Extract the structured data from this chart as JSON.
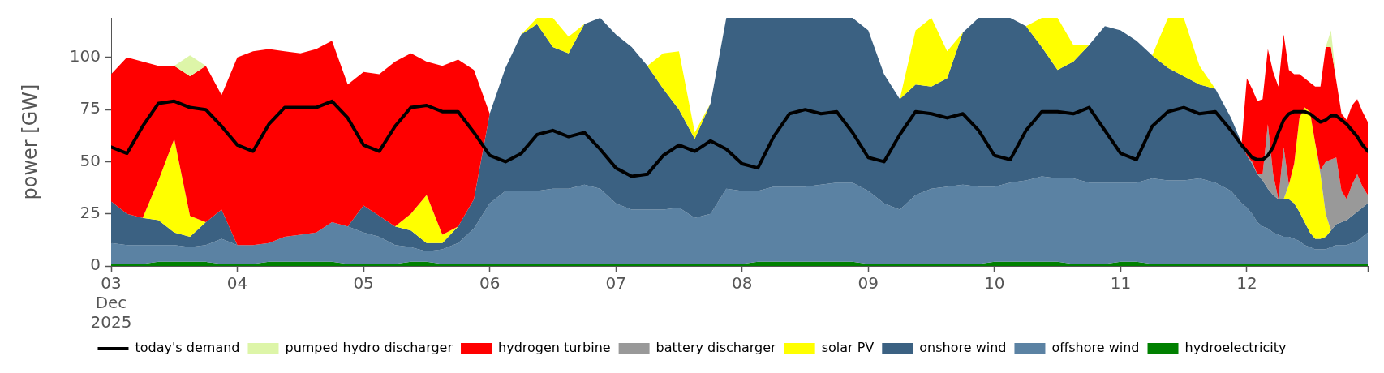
{
  "chart_data": {
    "type": "area",
    "stacked": true,
    "ylabel": "power [GW]",
    "legend": "bottom",
    "x": [
      "2025-12-03T00:00",
      "2025-12-03T03:00",
      "2025-12-03T06:00",
      "2025-12-03T09:00",
      "2025-12-03T12:00",
      "2025-12-03T15:00",
      "2025-12-03T18:00",
      "2025-12-03T21:00",
      "2025-12-04T00:00",
      "2025-12-04T03:00",
      "2025-12-04T06:00",
      "2025-12-04T09:00",
      "2025-12-04T12:00",
      "2025-12-04T15:00",
      "2025-12-04T18:00",
      "2025-12-04T21:00",
      "2025-12-05T00:00",
      "2025-12-05T03:00",
      "2025-12-05T06:00",
      "2025-12-05T09:00",
      "2025-12-05T12:00",
      "2025-12-05T15:00",
      "2025-12-05T18:00",
      "2025-12-05T21:00",
      "2025-12-06T00:00",
      "2025-12-06T03:00",
      "2025-12-06T06:00",
      "2025-12-06T09:00",
      "2025-12-06T12:00",
      "2025-12-06T15:00",
      "2025-12-06T18:00",
      "2025-12-06T21:00",
      "2025-12-07T00:00",
      "2025-12-07T03:00",
      "2025-12-07T06:00",
      "2025-12-07T09:00",
      "2025-12-07T12:00",
      "2025-12-07T15:00",
      "2025-12-07T18:00",
      "2025-12-07T21:00",
      "2025-12-08T00:00",
      "2025-12-08T03:00",
      "2025-12-08T06:00",
      "2025-12-08T09:00",
      "2025-12-08T12:00",
      "2025-12-08T15:00",
      "2025-12-08T18:00",
      "2025-12-08T21:00",
      "2025-12-09T00:00",
      "2025-12-09T03:00",
      "2025-12-09T06:00",
      "2025-12-09T09:00",
      "2025-12-09T12:00",
      "2025-12-09T15:00",
      "2025-12-09T18:00",
      "2025-12-09T21:00",
      "2025-12-10T00:00",
      "2025-12-10T03:00",
      "2025-12-10T06:00",
      "2025-12-10T09:00",
      "2025-12-10T12:00",
      "2025-12-10T15:00",
      "2025-12-10T18:00",
      "2025-12-10T21:00",
      "2025-12-11T00:00",
      "2025-12-11T03:00",
      "2025-12-11T06:00",
      "2025-12-11T09:00",
      "2025-12-11T12:00",
      "2025-12-11T15:00",
      "2025-12-11T18:00",
      "2025-12-11T21:00",
      "2025-12-11T23:00",
      "2025-12-12T00:00",
      "2025-12-12T01:00",
      "2025-12-12T02:00",
      "2025-12-12T03:00",
      "2025-12-12T04:00",
      "2025-12-12T05:00",
      "2025-12-12T06:00",
      "2025-12-12T07:00",
      "2025-12-12T08:00",
      "2025-12-12T09:00",
      "2025-12-12T10:00",
      "2025-12-12T11:00",
      "2025-12-12T12:00",
      "2025-12-12T13:00",
      "2025-12-12T14:00",
      "2025-12-12T15:00",
      "2025-12-12T16:00",
      "2025-12-12T17:00",
      "2025-12-12T18:00",
      "2025-12-12T19:00",
      "2025-12-12T20:00",
      "2025-12-12T21:00",
      "2025-12-12T22:00",
      "2025-12-12T23:00"
    ],
    "xlim": [
      "2025-12-03",
      "2025-12-12T23:00"
    ],
    "xticks": [
      {
        "value": "2025-12-03",
        "label": "03\nDec\n2025"
      },
      {
        "value": "2025-12-04",
        "label": "04"
      },
      {
        "value": "2025-12-05",
        "label": "05"
      },
      {
        "value": "2025-12-06",
        "label": "06"
      },
      {
        "value": "2025-12-07",
        "label": "07"
      },
      {
        "value": "2025-12-08",
        "label": "08"
      },
      {
        "value": "2025-12-09",
        "label": "09"
      },
      {
        "value": "2025-12-10",
        "label": "10"
      },
      {
        "value": "2025-12-11",
        "label": "11"
      },
      {
        "value": "2025-12-12",
        "label": "12"
      },
      {
        "value": "2025-12-12T23:00",
        "label": null
      }
    ],
    "ylim": [
      0,
      119
    ],
    "yticks": [
      0,
      25,
      50,
      75,
      100
    ],
    "series": [
      {
        "name": "hydroelectricity",
        "color": "#008000",
        "values": [
          1,
          1,
          1,
          2,
          2,
          2,
          2,
          1,
          1,
          1,
          2,
          2,
          2,
          2,
          2,
          1,
          1,
          1,
          1,
          2,
          2,
          1,
          1,
          1,
          1,
          1,
          1,
          1,
          1,
          1,
          1,
          1,
          1,
          1,
          1,
          1,
          1,
          1,
          1,
          1,
          1,
          2,
          2,
          2,
          2,
          2,
          2,
          2,
          1,
          1,
          1,
          1,
          1,
          1,
          1,
          1,
          2,
          2,
          2,
          2,
          2,
          1,
          1,
          1,
          2,
          2,
          1,
          1,
          1,
          1,
          1,
          1,
          1,
          1,
          1,
          1,
          1,
          1,
          1,
          1,
          1,
          1,
          1,
          1,
          1,
          1,
          1,
          1,
          1,
          1,
          1,
          1,
          1,
          1,
          1,
          1,
          1
        ]
      },
      {
        "name": "offshore wind",
        "color": "#5b82a3",
        "values": [
          10,
          9,
          9,
          8,
          8,
          7,
          8,
          12,
          9,
          9,
          9,
          12,
          13,
          14,
          19,
          18,
          15,
          13,
          9,
          7,
          5,
          7,
          10,
          17,
          29,
          35,
          35,
          35,
          36,
          36,
          38,
          36,
          29,
          26,
          26,
          26,
          27,
          22,
          24,
          36,
          35,
          34,
          36,
          36,
          36,
          37,
          38,
          38,
          35,
          29,
          26,
          33,
          36,
          37,
          38,
          37,
          36,
          38,
          39,
          41,
          40,
          41,
          39,
          39,
          38,
          38,
          41,
          40,
          40,
          41,
          39,
          35,
          29,
          27,
          24,
          20,
          18,
          17,
          15,
          14,
          13,
          13,
          12,
          11,
          9,
          8,
          7,
          7,
          7,
          8,
          9,
          9,
          9,
          10,
          11,
          13,
          15
        ]
      },
      {
        "name": "onshore wind",
        "color": "#3b6182",
        "values": [
          20,
          15,
          13,
          12,
          6,
          5,
          11,
          14,
          0,
          null,
          null,
          null,
          null,
          null,
          null,
          0,
          13,
          10,
          9,
          8,
          4,
          3,
          8,
          14,
          43,
          59,
          75,
          80,
          68,
          65,
          77,
          82,
          81,
          78,
          69,
          58,
          47,
          38,
          53,
          82,
          83,
          83,
          81,
          81,
          81,
          80,
          79,
          79,
          77,
          62,
          53,
          53,
          49,
          52,
          73,
          81,
          81,
          79,
          74,
          62,
          52,
          56,
          66,
          75,
          73,
          68,
          59,
          54,
          50,
          45,
          45,
          35,
          29,
          25,
          24,
          23,
          22,
          19,
          18,
          17,
          18,
          18,
          17,
          14,
          11,
          7,
          5,
          5,
          6,
          8,
          10,
          11,
          12,
          13,
          14,
          14,
          14
        ]
      },
      {
        "name": "solar PV",
        "color": "#ffff00",
        "values": [
          null,
          null,
          0,
          19,
          45,
          10,
          0,
          null,
          null,
          null,
          null,
          null,
          null,
          null,
          null,
          null,
          null,
          null,
          0,
          8,
          23,
          4,
          0,
          null,
          null,
          null,
          0,
          3,
          14,
          8,
          0,
          null,
          null,
          null,
          0,
          17,
          28,
          3,
          0,
          null,
          null,
          null,
          null,
          null,
          null,
          null,
          null,
          null,
          null,
          null,
          0,
          26,
          33,
          13,
          0,
          null,
          null,
          null,
          0,
          14,
          25,
          8,
          0,
          null,
          null,
          null,
          0,
          24,
          28,
          9,
          0,
          null,
          null,
          null,
          null,
          null,
          null,
          null,
          null,
          null,
          0,
          7,
          19,
          45,
          55,
          58,
          46,
          31,
          11,
          0,
          null,
          null,
          null,
          null,
          null,
          null,
          null
        ]
      },
      {
        "name": "battery discharger",
        "color": "#999999",
        "values": [
          null,
          null,
          null,
          null,
          null,
          null,
          null,
          null,
          null,
          null,
          null,
          null,
          null,
          null,
          null,
          null,
          null,
          null,
          null,
          null,
          null,
          null,
          null,
          null,
          null,
          null,
          null,
          null,
          null,
          null,
          null,
          null,
          null,
          null,
          null,
          null,
          null,
          null,
          null,
          null,
          null,
          null,
          null,
          null,
          null,
          null,
          null,
          null,
          null,
          null,
          null,
          null,
          null,
          null,
          null,
          null,
          null,
          null,
          null,
          null,
          null,
          null,
          null,
          null,
          null,
          null,
          null,
          null,
          null,
          null,
          null,
          null,
          null,
          0,
          1,
          0,
          3,
          31,
          10,
          0,
          25,
          0,
          null,
          null,
          null,
          null,
          0,
          2,
          25,
          34,
          32,
          15,
          10,
          15,
          18,
          10,
          4
        ]
      },
      {
        "name": "hydrogen turbine",
        "color": "#ff0000",
        "values": [
          61,
          75,
          75,
          55,
          35,
          67,
          75,
          55,
          90,
          93,
          93,
          89,
          87,
          88,
          87,
          68,
          64,
          68,
          79,
          77,
          64,
          81,
          80,
          62,
          0,
          null,
          null,
          null,
          null,
          null,
          null,
          null,
          null,
          null,
          null,
          null,
          null,
          null,
          null,
          null,
          null,
          null,
          null,
          null,
          null,
          null,
          null,
          null,
          null,
          null,
          null,
          null,
          null,
          null,
          null,
          null,
          null,
          null,
          null,
          null,
          null,
          null,
          null,
          null,
          null,
          null,
          null,
          null,
          null,
          null,
          null,
          null,
          0,
          37,
          35,
          35,
          36,
          36,
          49,
          54,
          54,
          55,
          43,
          21,
          14,
          14,
          27,
          40,
          55,
          54,
          37,
          37,
          38,
          38,
          36,
          36,
          35
        ]
      },
      {
        "name": "pumped hydro discharger",
        "color": "#ddf5a8",
        "values": [
          null,
          null,
          null,
          null,
          0,
          10,
          0,
          null,
          null,
          null,
          null,
          null,
          null,
          null,
          null,
          null,
          null,
          null,
          null,
          null,
          null,
          null,
          null,
          null,
          null,
          null,
          null,
          null,
          null,
          null,
          null,
          null,
          null,
          null,
          null,
          null,
          null,
          null,
          null,
          null,
          null,
          null,
          null,
          null,
          null,
          null,
          null,
          null,
          null,
          null,
          null,
          null,
          null,
          null,
          null,
          null,
          null,
          null,
          null,
          null,
          null,
          null,
          null,
          null,
          null,
          null,
          null,
          null,
          null,
          null,
          null,
          null,
          null,
          null,
          null,
          null,
          null,
          null,
          null,
          null,
          null,
          null,
          null,
          null,
          null,
          null,
          null,
          null,
          0,
          8,
          0,
          null,
          null,
          null,
          null,
          null,
          null
        ]
      },
      {
        "name": "today's demand",
        "type": "line",
        "color": "#000000",
        "values": [
          57,
          54,
          67,
          78,
          79,
          76,
          75,
          67,
          58,
          55,
          68,
          76,
          76,
          76,
          79,
          71,
          58,
          55,
          67,
          76,
          77,
          74,
          74,
          64,
          53,
          50,
          54,
          63,
          65,
          62,
          64,
          56,
          47,
          43,
          44,
          53,
          58,
          55,
          60,
          56,
          49,
          47,
          62,
          73,
          75,
          73,
          74,
          64,
          52,
          50,
          63,
          74,
          73,
          71,
          73,
          65,
          53,
          51,
          65,
          74,
          74,
          73,
          76,
          65,
          54,
          51,
          67,
          74,
          76,
          73,
          74,
          65,
          58,
          55,
          52,
          51,
          51,
          53,
          57,
          64,
          70,
          73,
          74,
          74,
          74,
          73,
          71,
          69,
          70,
          72,
          72,
          70,
          68,
          65,
          62,
          58,
          55
        ]
      }
    ]
  }
}
